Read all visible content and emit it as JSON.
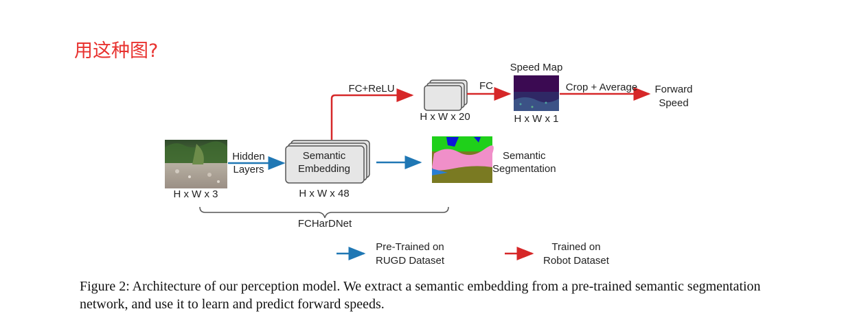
{
  "note": "用这种图?",
  "nodes": {
    "input_image_dims": "H x W x 3",
    "hidden_layers": [
      "Hidden",
      "Layers"
    ],
    "embedding": [
      "Semantic",
      "Embedding"
    ],
    "embedding_dims": "H x W x 48",
    "fc_relu": "FC+ReLU",
    "stack20_dims": "H x W x 20",
    "fc": "FC",
    "speed_map_title": "Speed Map",
    "speed_map_dims": "H x W x 1",
    "crop_average": "Crop + Average",
    "forward_speed": [
      "Forward",
      "Speed"
    ],
    "semantic_segmentation": [
      "Semantic",
      "Segmentation"
    ],
    "network_name": "FCHarDNet"
  },
  "legend": {
    "pretrained": [
      "Pre-Trained on",
      "RUGD Dataset"
    ],
    "trained": [
      "Trained on",
      "Robot Dataset"
    ]
  },
  "caption": "Figure 2: Architecture of our perception model. We extract a semantic embedding from a pre-trained semantic segmentation network, and use it to learn and predict forward speeds.",
  "colors": {
    "blue_arrow": "#1f77b4",
    "red_arrow": "#d62728",
    "note_text": "#e8322f",
    "box_fill": "#e6e6e6",
    "box_stroke": "#555555"
  }
}
